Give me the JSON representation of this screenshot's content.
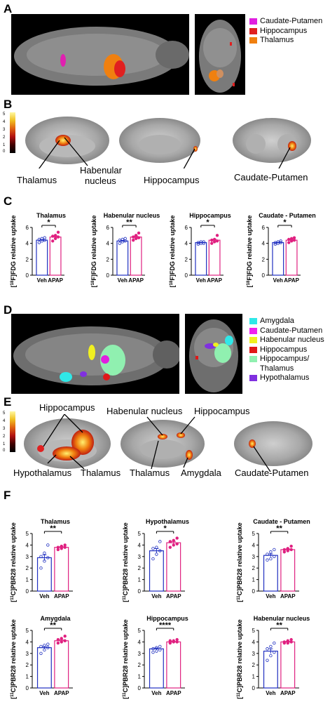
{
  "panels": {
    "A": "A",
    "B": "B",
    "C": "C",
    "D": "D",
    "E": "E",
    "F": "F"
  },
  "legend_A": [
    {
      "label": "Caudate-Putamen",
      "color": "#e020e0"
    },
    {
      "label": "Hippocampus",
      "color": "#e02020"
    },
    {
      "label": "Thalamus",
      "color": "#f08010"
    }
  ],
  "legend_D": [
    {
      "label": "Amygdala",
      "color": "#30e8e8"
    },
    {
      "label": "Caudate-Putamen",
      "color": "#f020f0"
    },
    {
      "label": "Habenular nucleus",
      "color": "#f0f020"
    },
    {
      "label": "Hippocampus",
      "color": "#e01818"
    },
    {
      "label": "Hippocampus/",
      "color": "#90f0b0"
    },
    {
      "label": "Thalamus",
      "color": ""
    },
    {
      "label": "Hypothalamus",
      "color": "#8030e0"
    }
  ],
  "colorbar_B": {
    "ticks": [
      "5",
      "4",
      "3",
      "2",
      "1",
      "0"
    ]
  },
  "colorbar_E": {
    "ticks": [
      "5",
      "4",
      "3",
      "2",
      "1",
      "0"
    ]
  },
  "labels_B": {
    "thalamus": "Thalamus",
    "habenular1": "Habenular",
    "habenular2": "nucleus",
    "hippocampus": "Hippocampus",
    "caudate": "Caudate-Putamen"
  },
  "labels_E": {
    "hippocampus_left": "Hippocampus",
    "habenular": "Habenular nucleus",
    "hippocampus_right": "Hippocampus",
    "hypothalamus": "Hypothalamus",
    "thalamus": "Thalamus",
    "thalamus_mid": "Thalamus",
    "amygdala": "Amygdala",
    "caudate": "Caudate-Putamen"
  },
  "chart_data": [
    {
      "type": "bar",
      "title": "Thalamus",
      "ylabel": "[18F]FDG relative uptake",
      "categories": [
        "Veh",
        "APAP"
      ],
      "values": [
        4.4,
        4.8
      ],
      "ylim": [
        0,
        6
      ],
      "yticks": [
        "0",
        "2",
        "4",
        "6"
      ],
      "significance": "*",
      "colors": [
        "#2030c0",
        "#e02080"
      ],
      "points": [
        [
          4.1,
          4.3,
          4.4,
          4.5,
          4.6,
          4.7
        ],
        [
          4.3,
          4.6,
          4.8,
          4.9,
          5.0,
          5.4
        ]
      ]
    },
    {
      "type": "bar",
      "title": "Habenular nucleus",
      "ylabel": "[18F]FDG relative uptake",
      "categories": [
        "Veh",
        "APAP"
      ],
      "values": [
        4.3,
        4.8
      ],
      "ylim": [
        0,
        6
      ],
      "yticks": [
        "0",
        "2",
        "4",
        "6"
      ],
      "significance": "**",
      "colors": [
        "#2030c0",
        "#e02080"
      ],
      "points": [
        [
          4.0,
          4.2,
          4.3,
          4.4,
          4.5,
          4.6
        ],
        [
          4.4,
          4.6,
          4.7,
          4.8,
          5.0,
          5.3
        ]
      ]
    },
    {
      "type": "bar",
      "title": "Hippocampus",
      "ylabel": "[18F]FDG relative uptake",
      "categories": [
        "Veh",
        "APAP"
      ],
      "values": [
        4.1,
        4.4
      ],
      "ylim": [
        0,
        6
      ],
      "yticks": [
        "0",
        "2",
        "4",
        "6"
      ],
      "significance": "*",
      "colors": [
        "#2030c0",
        "#e02080"
      ],
      "points": [
        [
          3.9,
          4.0,
          4.0,
          4.1,
          4.2,
          4.2
        ],
        [
          4.0,
          4.2,
          4.3,
          4.4,
          4.5,
          5.0
        ]
      ]
    },
    {
      "type": "bar",
      "title": "Caudate - Putamen",
      "ylabel": "[18F]FDG relative uptake",
      "categories": [
        "Veh",
        "APAP"
      ],
      "values": [
        4.1,
        4.4
      ],
      "ylim": [
        0,
        6
      ],
      "yticks": [
        "0",
        "2",
        "4",
        "6"
      ],
      "significance": "*",
      "colors": [
        "#2030c0",
        "#e02080"
      ],
      "points": [
        [
          3.9,
          4.0,
          4.1,
          4.1,
          4.2,
          4.3
        ],
        [
          4.1,
          4.3,
          4.4,
          4.5,
          4.6,
          4.7
        ]
      ]
    },
    {
      "type": "bar",
      "title": "Thalamus",
      "ylabel": "[11C]PBR28 relative uptake",
      "categories": [
        "Veh",
        "APAP"
      ],
      "values": [
        2.9,
        3.8
      ],
      "ylim": [
        0,
        5
      ],
      "yticks": [
        "0",
        "1",
        "2",
        "3",
        "4",
        "5"
      ],
      "significance": "**",
      "colors": [
        "#2030c0",
        "#e02080"
      ],
      "points": [
        [
          2.0,
          2.6,
          2.9,
          3.0,
          3.3,
          4.0
        ],
        [
          3.6,
          3.7,
          3.8,
          3.8,
          3.9,
          4.0
        ]
      ]
    },
    {
      "type": "bar",
      "title": "Hypothalamus",
      "ylabel": "[11C]PBR28 relative uptake",
      "categories": [
        "Veh",
        "APAP"
      ],
      "values": [
        3.5,
        4.2
      ],
      "ylim": [
        0,
        5
      ],
      "yticks": [
        "0",
        "1",
        "2",
        "3",
        "4",
        "5"
      ],
      "significance": "*",
      "colors": [
        "#2030c0",
        "#e02080"
      ],
      "points": [
        [
          2.8,
          3.2,
          3.5,
          3.7,
          3.8,
          4.3
        ],
        [
          3.8,
          4.0,
          4.1,
          4.3,
          4.4,
          4.6
        ]
      ]
    },
    {
      "type": "bar",
      "title": "Caudate - Putamen",
      "ylabel": "[11C]PBR28 relative uptake",
      "categories": [
        "Veh",
        "APAP"
      ],
      "values": [
        3.1,
        3.6
      ],
      "ylim": [
        0,
        5
      ],
      "yticks": [
        "0",
        "1",
        "2",
        "3",
        "4",
        "5"
      ],
      "significance": "**",
      "colors": [
        "#2030c0",
        "#e02080"
      ],
      "points": [
        [
          2.7,
          2.8,
          3.0,
          3.2,
          3.4,
          3.6
        ],
        [
          3.4,
          3.5,
          3.6,
          3.6,
          3.7,
          3.9
        ]
      ]
    },
    {
      "type": "bar",
      "title": "Amygdala",
      "ylabel": "[11C]PBR28 relative uptake",
      "categories": [
        "Veh",
        "APAP"
      ],
      "values": [
        3.5,
        4.1
      ],
      "ylim": [
        0,
        5
      ],
      "yticks": [
        "0",
        "1",
        "2",
        "3",
        "4",
        "5"
      ],
      "significance": "**",
      "colors": [
        "#2030c0",
        "#e02080"
      ],
      "points": [
        [
          3.0,
          3.3,
          3.5,
          3.6,
          3.7,
          3.8
        ],
        [
          3.9,
          4.0,
          4.1,
          4.2,
          4.3,
          4.5
        ]
      ]
    },
    {
      "type": "bar",
      "title": "Hippocampus",
      "ylabel": "[11C]PBR28 relative uptake",
      "categories": [
        "Veh",
        "APAP"
      ],
      "values": [
        3.4,
        4.0
      ],
      "ylim": [
        0,
        5
      ],
      "yticks": [
        "0",
        "1",
        "2",
        "3",
        "4",
        "5"
      ],
      "significance": "****",
      "colors": [
        "#2030c0",
        "#e02080"
      ],
      "points": [
        [
          3.1,
          3.2,
          3.3,
          3.4,
          3.5,
          3.6
        ],
        [
          3.9,
          4.0,
          4.0,
          4.1,
          4.1,
          4.2
        ]
      ]
    },
    {
      "type": "bar",
      "title": "Habenular nucleus",
      "ylabel": "[11C]PBR28 relative uptake",
      "categories": [
        "Veh",
        "APAP"
      ],
      "values": [
        3.2,
        4.0
      ],
      "ylim": [
        0,
        5
      ],
      "yticks": [
        "0",
        "1",
        "2",
        "3",
        "4",
        "5"
      ],
      "significance": "**",
      "colors": [
        "#2030c0",
        "#e02080"
      ],
      "points": [
        [
          2.4,
          2.8,
          3.1,
          3.4,
          3.6,
          3.9
        ],
        [
          3.9,
          3.9,
          4.0,
          4.0,
          4.1,
          4.2
        ]
      ]
    }
  ]
}
